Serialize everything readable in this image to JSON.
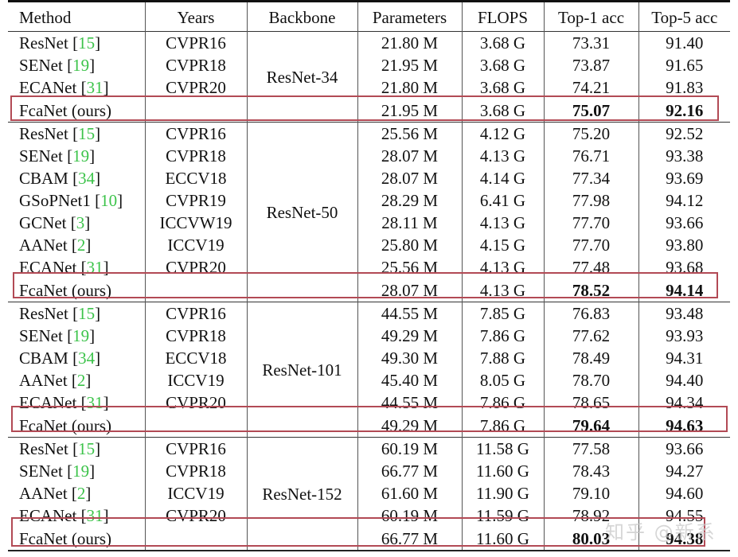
{
  "table": {
    "columns": [
      "Method",
      "Years",
      "Backbone",
      "Parameters",
      "FLOPS",
      "Top-1 acc",
      "Top-5 acc"
    ],
    "highlight_color": "#b24a55",
    "reference_color": "#3cc34a",
    "groups": [
      {
        "backbone": "ResNet-34",
        "rows": [
          {
            "method": "ResNet",
            "ref": "15",
            "year": "CVPR16",
            "params": "21.80 M",
            "flops": "3.68 G",
            "top1": "73.31",
            "top5": "91.40"
          },
          {
            "method": "SENet",
            "ref": "19",
            "year": "CVPR18",
            "params": "21.95 M",
            "flops": "3.68 G",
            "top1": "73.87",
            "top5": "91.65"
          },
          {
            "method": "ECANet",
            "ref": "31",
            "year": "CVPR20",
            "params": "21.80 M",
            "flops": "3.68 G",
            "top1": "74.21",
            "top5": "91.83"
          }
        ],
        "ours": {
          "method": "FcaNet (ours)",
          "year": "",
          "params": "21.95 M",
          "flops": "3.68 G",
          "top1": "75.07",
          "top5": "92.16"
        }
      },
      {
        "backbone": "ResNet-50",
        "rows": [
          {
            "method": "ResNet",
            "ref": "15",
            "year": "CVPR16",
            "params": "25.56 M",
            "flops": "4.12 G",
            "top1": "75.20",
            "top5": "92.52"
          },
          {
            "method": "SENet",
            "ref": "19",
            "year": "CVPR18",
            "params": "28.07 M",
            "flops": "4.13 G",
            "top1": "76.71",
            "top5": "93.38"
          },
          {
            "method": "CBAM",
            "ref": "34",
            "year": "ECCV18",
            "params": "28.07 M",
            "flops": "4.14 G",
            "top1": "77.34",
            "top5": "93.69"
          },
          {
            "method": "GSoPNet1",
            "ref": "10",
            "year": "CVPR19",
            "params": "28.29 M",
            "flops": "6.41 G",
            "top1": "77.98",
            "top5": "94.12"
          },
          {
            "method": "GCNet",
            "ref": "3",
            "year": "ICCVW19",
            "params": "28.11 M",
            "flops": "4.13 G",
            "top1": "77.70",
            "top5": "93.66"
          },
          {
            "method": "AANet",
            "ref": "2",
            "year": "ICCV19",
            "params": "25.80 M",
            "flops": "4.15 G",
            "top1": "77.70",
            "top5": "93.80"
          },
          {
            "method": "ECANet",
            "ref": "31",
            "year": "CVPR20",
            "params": "25.56 M",
            "flops": "4.13 G",
            "top1": "77.48",
            "top5": "93.68"
          }
        ],
        "ours": {
          "method": "FcaNet (ours)",
          "year": "",
          "params": "28.07 M",
          "flops": "4.13 G",
          "top1": "78.52",
          "top5": "94.14"
        }
      },
      {
        "backbone": "ResNet-101",
        "rows": [
          {
            "method": "ResNet",
            "ref": "15",
            "year": "CVPR16",
            "params": "44.55 M",
            "flops": "7.85 G",
            "top1": "76.83",
            "top5": "93.48"
          },
          {
            "method": "SENet",
            "ref": "19",
            "year": "CVPR18",
            "params": "49.29 M",
            "flops": "7.86 G",
            "top1": "77.62",
            "top5": "93.93"
          },
          {
            "method": "CBAM",
            "ref": "34",
            "year": "ECCV18",
            "params": "49.30 M",
            "flops": "7.88 G",
            "top1": "78.49",
            "top5": "94.31"
          },
          {
            "method": "AANet",
            "ref": "2",
            "year": "ICCV19",
            "params": "45.40 M",
            "flops": "8.05 G",
            "top1": "78.70",
            "top5": "94.40"
          },
          {
            "method": "ECANet",
            "ref": "31",
            "year": "CVPR20",
            "params": "44.55 M",
            "flops": "7.86 G",
            "top1": "78.65",
            "top5": "94.34"
          }
        ],
        "ours": {
          "method": "FcaNet (ours)",
          "year": "",
          "params": "49.29 M",
          "flops": "7.86 G",
          "top1": "79.64",
          "top5": "94.63"
        }
      },
      {
        "backbone": "ResNet-152",
        "rows": [
          {
            "method": "ResNet",
            "ref": "15",
            "year": "CVPR16",
            "params": "60.19 M",
            "flops": "11.58 G",
            "top1": "77.58",
            "top5": "93.66"
          },
          {
            "method": "SENet",
            "ref": "19",
            "year": "CVPR18",
            "params": "66.77 M",
            "flops": "11.60 G",
            "top1": "78.43",
            "top5": "94.27"
          },
          {
            "method": "AANet",
            "ref": "2",
            "year": "ICCV19",
            "params": "61.60 M",
            "flops": "11.90 G",
            "top1": "79.10",
            "top5": "94.60"
          },
          {
            "method": "ECANet",
            "ref": "31",
            "year": "CVPR20",
            "params": "60.19 M",
            "flops": "11.59 G",
            "top1": "78.92",
            "top5": "94.55"
          }
        ],
        "ours": {
          "method": "FcaNet (ours)",
          "year": "",
          "params": "66.77 M",
          "flops": "11.60 G",
          "top1": "80.03",
          "top5": "94.38"
        }
      }
    ]
  },
  "watermark": "知乎 @新系"
}
